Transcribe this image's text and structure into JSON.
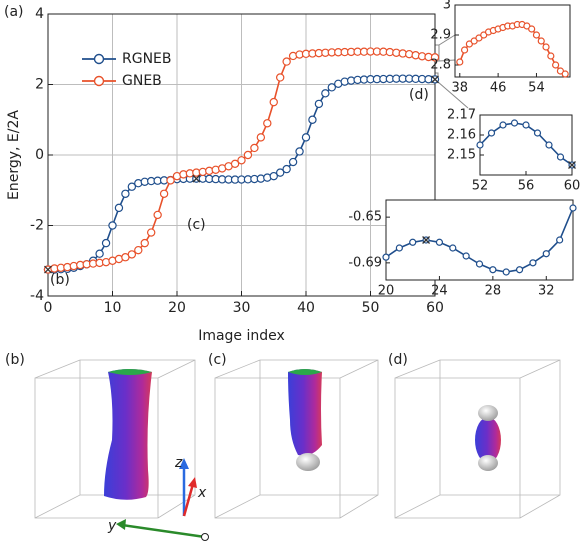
{
  "chart_data": [
    {
      "type": "line",
      "xlabel": "Image index",
      "ylabel": "Energy, E/2A",
      "x": [
        0,
        1,
        2,
        3,
        4,
        5,
        6,
        7,
        8,
        9,
        10,
        11,
        12,
        13,
        14,
        15,
        16,
        17,
        18,
        19,
        20,
        21,
        22,
        23,
        24,
        25,
        26,
        27,
        28,
        29,
        30,
        31,
        32,
        33,
        34,
        35,
        36,
        37,
        38,
        39,
        40,
        41,
        42,
        43,
        44,
        45,
        46,
        47,
        48,
        49,
        50,
        51,
        52,
        53,
        54,
        55,
        56,
        57,
        58,
        59,
        60
      ],
      "series": [
        {
          "name": "RGNEB",
          "color": "#1f4e8c",
          "values": [
            -3.25,
            -3.25,
            -3.24,
            -3.23,
            -3.2,
            -3.15,
            -3.1,
            -3.0,
            -2.8,
            -2.5,
            -2.0,
            -1.5,
            -1.1,
            -0.9,
            -0.8,
            -0.76,
            -0.74,
            -0.73,
            -0.72,
            -0.71,
            -0.685,
            -0.677,
            -0.672,
            -0.67,
            -0.672,
            -0.677,
            -0.684,
            -0.691,
            -0.696,
            -0.698,
            -0.696,
            -0.69,
            -0.682,
            -0.67,
            -0.642,
            -0.6,
            -0.5,
            -0.4,
            -0.2,
            0.1,
            0.5,
            1.0,
            1.45,
            1.75,
            1.92,
            2.02,
            2.08,
            2.11,
            2.13,
            2.14,
            2.15,
            2.153,
            2.155,
            2.161,
            2.165,
            2.166,
            2.165,
            2.161,
            2.155,
            2.149,
            2.145
          ]
        },
        {
          "name": "GNEB",
          "color": "#e8512a",
          "values": [
            -3.25,
            -3.22,
            -3.2,
            -3.18,
            -3.15,
            -3.12,
            -3.1,
            -3.08,
            -3.06,
            -3.04,
            -3.0,
            -2.95,
            -2.9,
            -2.82,
            -2.7,
            -2.5,
            -2.2,
            -1.7,
            -1.1,
            -0.72,
            -0.6,
            -0.55,
            -0.52,
            -0.5,
            -0.48,
            -0.45,
            -0.42,
            -0.38,
            -0.32,
            -0.25,
            -0.15,
            0.0,
            0.2,
            0.5,
            0.9,
            1.5,
            2.2,
            2.65,
            2.81,
            2.85,
            2.87,
            2.88,
            2.89,
            2.9,
            2.91,
            2.915,
            2.92,
            2.925,
            2.93,
            2.93,
            2.935,
            2.935,
            2.93,
            2.92,
            2.9,
            2.88,
            2.86,
            2.83,
            2.8,
            2.78,
            2.77
          ]
        }
      ],
      "xlim": [
        0,
        60
      ],
      "ylim": [
        -4,
        4
      ],
      "xticks": [
        0,
        10,
        20,
        30,
        40,
        50,
        60
      ],
      "yticks": [
        -4,
        -2,
        0,
        2,
        4
      ],
      "grid": true,
      "legend": "upper left",
      "annotations": [
        "(a)",
        "(b)",
        "(c)",
        "(d)"
      ]
    },
    {
      "type": "line",
      "x": [
        38,
        39,
        40,
        41,
        42,
        43,
        44,
        45,
        46,
        47,
        48,
        49,
        50,
        51,
        52,
        53,
        54,
        55,
        56,
        57,
        58,
        59,
        60
      ],
      "series": [
        {
          "color": "#e8512a",
          "values": [
            2.81,
            2.85,
            2.87,
            2.88,
            2.89,
            2.9,
            2.91,
            2.915,
            2.92,
            2.925,
            2.93,
            2.93,
            2.935,
            2.935,
            2.93,
            2.92,
            2.9,
            2.88,
            2.86,
            2.83,
            2.8,
            2.78,
            2.77
          ]
        }
      ],
      "xlim": [
        37,
        61
      ],
      "ylim": [
        2.76,
        3.0
      ],
      "xticks": [
        38,
        46,
        54
      ],
      "yticks": [
        2.8,
        2.9,
        3
      ],
      "grid": false
    },
    {
      "type": "line",
      "x": [
        52,
        53,
        54,
        55,
        56,
        57,
        58,
        59,
        60
      ],
      "series": [
        {
          "color": "#1f4e8c",
          "values": [
            2.155,
            2.161,
            2.165,
            2.166,
            2.165,
            2.161,
            2.155,
            2.149,
            2.145
          ]
        }
      ],
      "xlim": [
        52,
        60
      ],
      "ylim": [
        2.14,
        2.17
      ],
      "xticks": [
        52,
        56,
        60
      ],
      "yticks": [
        2.15,
        2.16,
        2.17
      ],
      "grid": false
    },
    {
      "type": "line",
      "x": [
        20,
        21,
        22,
        23,
        24,
        25,
        26,
        27,
        28,
        29,
        30,
        31,
        32,
        33,
        34
      ],
      "series": [
        {
          "color": "#1f4e8c",
          "values": [
            -0.685,
            -0.677,
            -0.672,
            -0.67,
            -0.672,
            -0.677,
            -0.684,
            -0.691,
            -0.696,
            -0.698,
            -0.696,
            -0.69,
            -0.682,
            -0.67,
            -0.642
          ]
        }
      ],
      "xlim": [
        20,
        34
      ],
      "ylim": [
        -0.705,
        -0.635
      ],
      "xticks": [
        20,
        24,
        28,
        32
      ],
      "yticks": [
        -0.69,
        -0.65
      ],
      "grid": false
    }
  ],
  "panels": [
    {
      "label": "(b)"
    },
    {
      "label": "(c)"
    },
    {
      "label": "(d)"
    }
  ],
  "axes_triad": {
    "x": "x",
    "y": "y",
    "z": "z"
  }
}
